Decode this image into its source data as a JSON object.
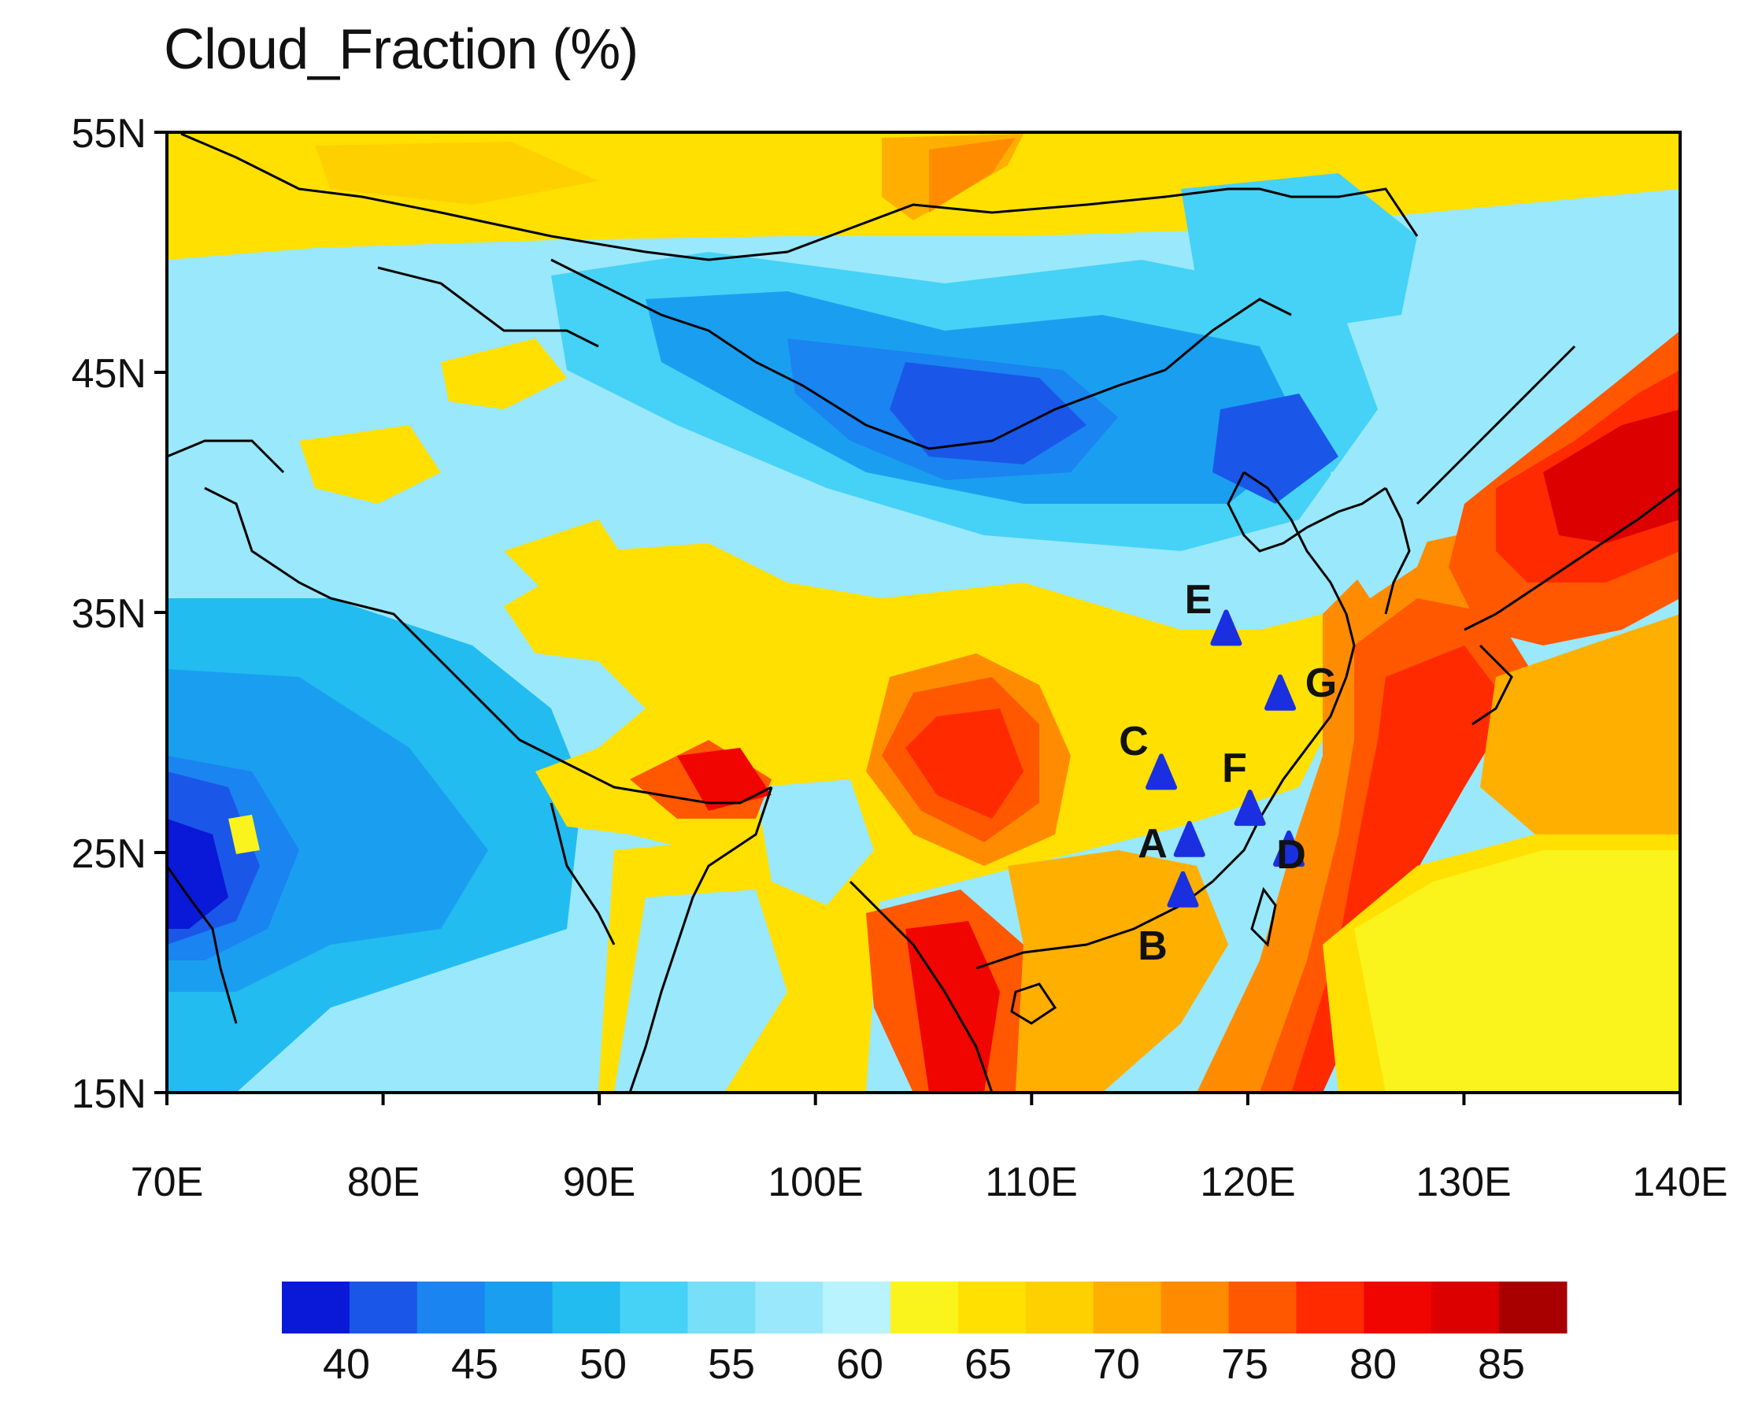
{
  "title": "Cloud_Fraction (%)",
  "axes": {
    "lat_ticks": [
      "55N",
      "45N",
      "35N",
      "25N",
      "15N"
    ],
    "lon_ticks": [
      "70E",
      "80E",
      "90E",
      "100E",
      "110E",
      "120E",
      "130E",
      "140E"
    ],
    "lon_range": [
      70,
      140
    ],
    "lat_range": [
      15,
      55
    ]
  },
  "colorbar": {
    "labels": [
      "40",
      "45",
      "50",
      "55",
      "60",
      "65",
      "70",
      "75",
      "80",
      "85"
    ],
    "colors": [
      "#0a18d8",
      "#1a57e8",
      "#1a84f0",
      "#1a9ff0",
      "#22bcf0",
      "#45d2f6",
      "#78dff8",
      "#9ae8fb",
      "#b9f3fd",
      "#fbf31c",
      "#ffe000",
      "#ffd000",
      "#ffaf00",
      "#ff8c00",
      "#ff5800",
      "#ff2a00",
      "#f00500",
      "#dc0000",
      "#a80000"
    ]
  },
  "sites": [
    {
      "label": "A",
      "lon": 117.3,
      "lat": 25.5
    },
    {
      "label": "B",
      "lon": 117.0,
      "lat": 23.4
    },
    {
      "label": "C",
      "lon": 116.0,
      "lat": 28.3
    },
    {
      "label": "D",
      "lon": 121.9,
      "lat": 25.1
    },
    {
      "label": "E",
      "lon": 119.0,
      "lat": 34.3
    },
    {
      "label": "F",
      "lon": 120.1,
      "lat": 26.8
    },
    {
      "label": "G",
      "lon": 121.5,
      "lat": 31.6
    }
  ]
}
